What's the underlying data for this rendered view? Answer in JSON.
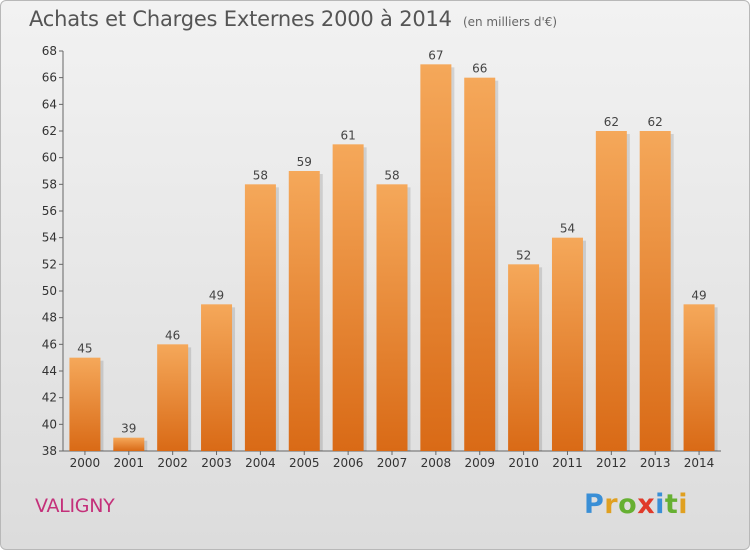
{
  "header": {
    "title": "Achats et Charges Externes 2000 à 2014",
    "subtitle": "(en milliers d'€)"
  },
  "footer": {
    "commune": "VALIGNY",
    "logo_letters": [
      "P",
      "r",
      "o",
      "x",
      "i",
      "t",
      "i"
    ]
  },
  "colors": {
    "bar_top": "#f5a85a",
    "bar_bottom": "#d96a16",
    "commune_text": "#c4307a",
    "logo": [
      "#3a8fd6",
      "#e0a020",
      "#66b032",
      "#e03a2a",
      "#3a8fd6",
      "#66b032",
      "#e0a020"
    ]
  },
  "chart_data": {
    "type": "bar",
    "categories": [
      "2000",
      "2001",
      "2002",
      "2003",
      "2004",
      "2005",
      "2006",
      "2007",
      "2008",
      "2009",
      "2010",
      "2011",
      "2012",
      "2013",
      "2014"
    ],
    "values": [
      45,
      39,
      46,
      49,
      58,
      59,
      61,
      58,
      67,
      66,
      52,
      54,
      62,
      62,
      49
    ],
    "title": "Achats et Charges Externes 2000 à 2014",
    "subtitle": "(en milliers d'€)",
    "xlabel": "",
    "ylabel": "",
    "ylim": [
      38,
      68
    ],
    "yticks": [
      38,
      40,
      42,
      44,
      46,
      48,
      50,
      52,
      54,
      56,
      58,
      60,
      62,
      64,
      66,
      68
    ],
    "grid": false,
    "data_labels": true
  }
}
